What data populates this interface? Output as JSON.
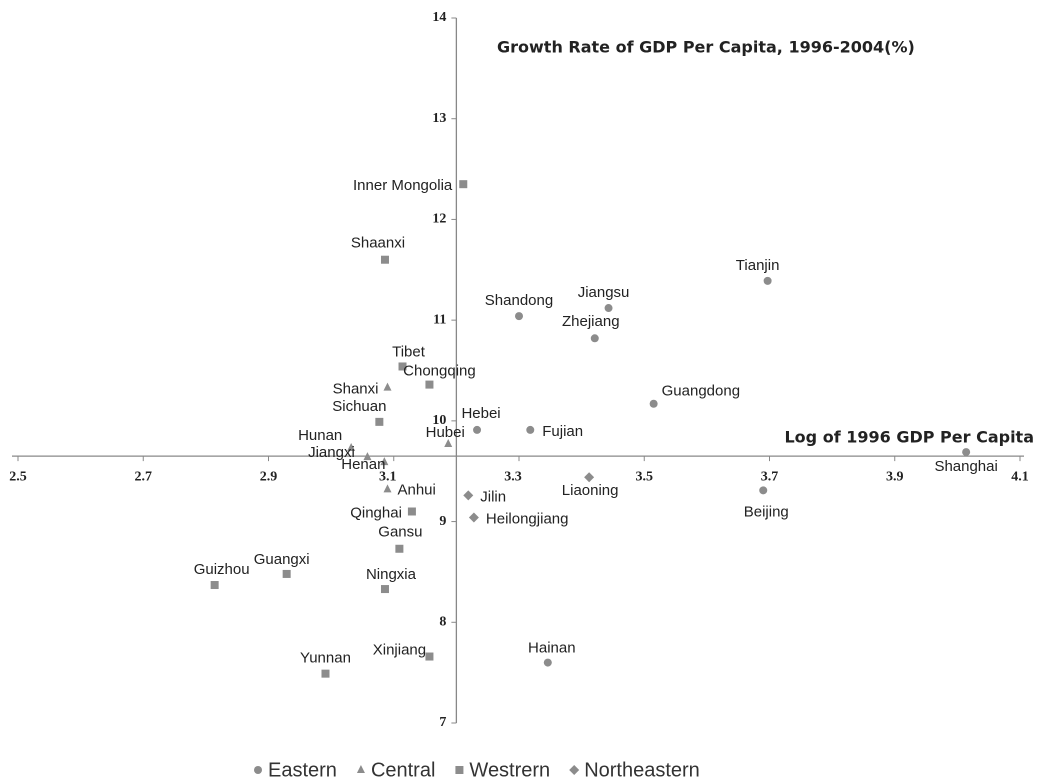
{
  "chart_data": {
    "type": "scatter",
    "title": "Growth Rate of GDP Per Capita, 1996-2004(%)",
    "x_label": "Log of 1996 GDP Per Capita",
    "xlim": [
      2.5,
      4.1
    ],
    "xticks": [
      2.5,
      2.7,
      2.9,
      3.1,
      3.3,
      3.5,
      3.7,
      3.9,
      4.1
    ],
    "ylim": [
      7,
      14
    ],
    "yticks": [
      7,
      8,
      9,
      10,
      11,
      12,
      13,
      14
    ],
    "y_axis_at_x": 3.2,
    "x_axis_at_y": 9.65,
    "series": [
      {
        "name": "Eastern",
        "marker": "circle",
        "color": "#8c8c8c",
        "labels": [
          "Tianjin",
          "Jiangsu",
          "Shandong",
          "Zhejiang",
          "Guangdong",
          "Hebei",
          "Fujian",
          "Shanghai",
          "Beijing",
          "Hainan"
        ],
        "x": [
          3.697,
          3.443,
          3.3,
          3.421,
          3.515,
          3.233,
          3.318,
          4.014,
          3.69,
          3.346
        ],
        "values": [
          11.39,
          11.12,
          11.04,
          10.82,
          10.17,
          9.91,
          9.91,
          9.69,
          9.31,
          7.6
        ]
      },
      {
        "name": "Central",
        "marker": "triangle",
        "color": "#8c8c8c",
        "labels": [
          "Shanxi",
          "Hubei",
          "Hunan",
          "Jiangxi",
          "Henan",
          "Anhui"
        ],
        "x": [
          3.09,
          3.187,
          3.032,
          3.058,
          3.085,
          3.09
        ],
        "values": [
          10.33,
          9.77,
          9.73,
          9.64,
          9.59,
          9.32
        ]
      },
      {
        "name": "Westrern",
        "marker": "square",
        "color": "#8c8c8c",
        "labels": [
          "Inner Mongolia",
          "Shaanxi",
          "Tibet",
          "Chongqing",
          "Sichuan",
          "Qinghai",
          "Gansu",
          "Guangxi",
          "Ningxia",
          "Guizhou",
          "Xinjiang",
          "Yunnan"
        ],
        "x": [
          3.211,
          3.086,
          3.114,
          3.157,
          3.077,
          3.129,
          3.109,
          2.929,
          3.086,
          2.814,
          3.157,
          2.991
        ],
        "values": [
          12.35,
          11.6,
          10.54,
          10.36,
          9.99,
          9.1,
          8.73,
          8.48,
          8.33,
          8.37,
          7.66,
          7.49
        ]
      },
      {
        "name": "Northeastern",
        "marker": "diamond",
        "color": "#8c8c8c",
        "labels": [
          "Liaoning",
          "Jilin",
          "Heilongjiang"
        ],
        "x": [
          3.412,
          3.219,
          3.228
        ],
        "values": [
          9.44,
          9.26,
          9.04
        ]
      }
    ]
  }
}
